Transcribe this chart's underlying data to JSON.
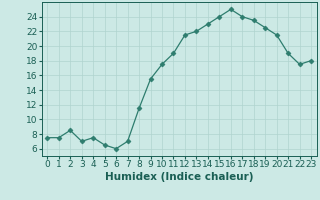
{
  "x": [
    0,
    1,
    2,
    3,
    4,
    5,
    6,
    7,
    8,
    9,
    10,
    11,
    12,
    13,
    14,
    15,
    16,
    17,
    18,
    19,
    20,
    21,
    22,
    23
  ],
  "y": [
    7.5,
    7.5,
    8.5,
    7.0,
    7.5,
    6.5,
    6.0,
    7.0,
    11.5,
    15.5,
    17.5,
    19.0,
    21.5,
    22.0,
    23.0,
    24.0,
    25.0,
    24.0,
    23.5,
    22.5,
    21.5,
    19.0,
    17.5,
    18.0
  ],
  "title": "",
  "xlabel": "Humidex (Indice chaleur)",
  "ylabel": "",
  "xlim": [
    -0.5,
    23.5
  ],
  "ylim": [
    5.0,
    26.0
  ],
  "yticks": [
    6,
    8,
    10,
    12,
    14,
    16,
    18,
    20,
    22,
    24
  ],
  "xticks": [
    0,
    1,
    2,
    3,
    4,
    5,
    6,
    7,
    8,
    9,
    10,
    11,
    12,
    13,
    14,
    15,
    16,
    17,
    18,
    19,
    20,
    21,
    22,
    23
  ],
  "line_color": "#2e7d6e",
  "marker_color": "#2e7d6e",
  "bg_color": "#cce9e5",
  "grid_color": "#b0d4cf",
  "tick_label_color": "#1a5f54",
  "axis_label_color": "#1a5f54",
  "font_size": 6.5,
  "label_font_size": 7.5
}
